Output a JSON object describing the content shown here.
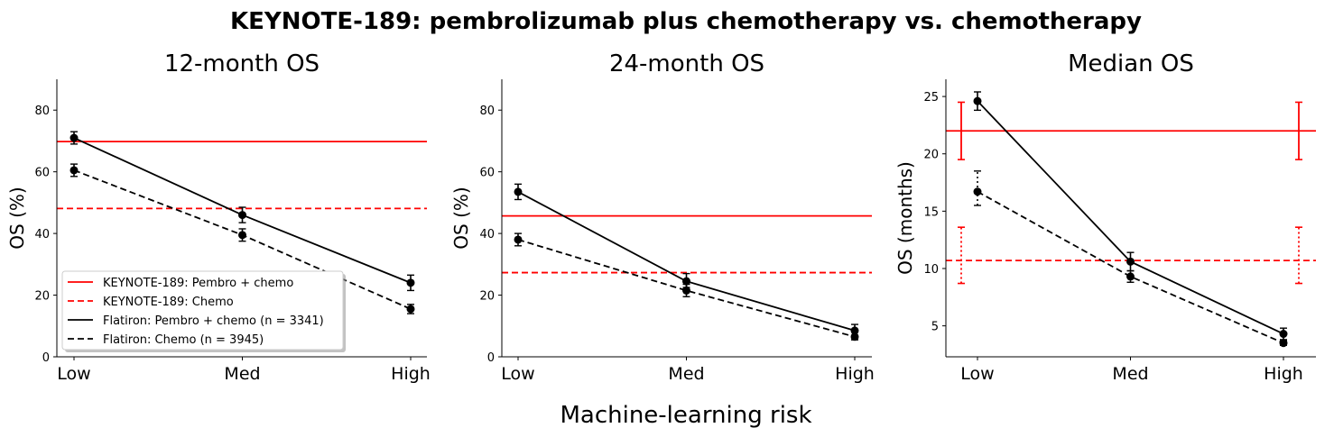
{
  "suptitle": "KEYNOTE-189: pembrolizumab plus chemotherapy vs. chemotherapy",
  "supxlabel": "Machine-learning risk",
  "colors": {
    "trial": "#ff0000",
    "flatiron": "#000000",
    "legend_shadow": "#999999"
  },
  "legend": {
    "placement": "lower-left of first panel",
    "entries": [
      {
        "label": "KEYNOTE-189: Pembro + chemo",
        "color": "#ff0000",
        "style": "solid"
      },
      {
        "label": "KEYNOTE-189: Chemo",
        "color": "#ff0000",
        "style": "dashed"
      },
      {
        "label": "Flatiron: Pembro + chemo (n = 3341)",
        "color": "#000000",
        "style": "solid"
      },
      {
        "label": "Flatiron: Chemo (n = 3945)",
        "color": "#000000",
        "style": "dashed"
      }
    ]
  },
  "chart_data": [
    {
      "type": "line",
      "title": "12-month OS",
      "xlabel": "",
      "ylabel": "OS (%)",
      "categories": [
        "Low",
        "Med",
        "High"
      ],
      "ylim": [
        0,
        90
      ],
      "yticks": [
        0,
        20,
        40,
        60,
        80
      ],
      "grid": false,
      "series": [
        {
          "name": "Flatiron: Pembro + chemo (n = 3341)",
          "style": "solid",
          "values": [
            71,
            46,
            24
          ],
          "err_low": [
            69,
            43.5,
            21.5
          ],
          "err_high": [
            73,
            48.5,
            26.5
          ]
        },
        {
          "name": "Flatiron: Chemo (n = 3945)",
          "style": "dashed",
          "values": [
            60.5,
            39.5,
            15.5
          ],
          "err_low": [
            58.5,
            37.5,
            14
          ],
          "err_high": [
            62.5,
            41.5,
            17
          ]
        }
      ],
      "reference_lines": [
        {
          "name": "KEYNOTE-189: Pembro + chemo",
          "style": "solid",
          "value": 69.8
        },
        {
          "name": "KEYNOTE-189: Chemo",
          "style": "dashed",
          "value": 48.1
        }
      ]
    },
    {
      "type": "line",
      "title": "24-month OS",
      "xlabel": "",
      "ylabel": "OS (%)",
      "categories": [
        "Low",
        "Med",
        "High"
      ],
      "ylim": [
        0,
        90
      ],
      "yticks": [
        0,
        20,
        40,
        60,
        80
      ],
      "grid": false,
      "series": [
        {
          "name": "Flatiron: Pembro + chemo (n = 3341)",
          "style": "solid",
          "values": [
            53.5,
            24.5,
            8.5
          ],
          "err_low": [
            51,
            22.5,
            7
          ],
          "err_high": [
            56,
            27,
            10.5
          ]
        },
        {
          "name": "Flatiron: Chemo (n = 3945)",
          "style": "dashed",
          "values": [
            38,
            21.5,
            6.5
          ],
          "err_low": [
            36,
            19.5,
            5.5
          ],
          "err_high": [
            40,
            23.5,
            8
          ]
        }
      ],
      "reference_lines": [
        {
          "name": "KEYNOTE-189: Pembro + chemo",
          "style": "solid",
          "value": 45.7
        },
        {
          "name": "KEYNOTE-189: Chemo",
          "style": "dashed",
          "value": 27.3
        }
      ]
    },
    {
      "type": "line",
      "title": "Median OS",
      "xlabel": "",
      "ylabel": "OS (months)",
      "categories": [
        "Low",
        "Med",
        "High"
      ],
      "ylim": [
        2.3,
        26.5
      ],
      "yticks": [
        5,
        10,
        15,
        20,
        25
      ],
      "grid": false,
      "series": [
        {
          "name": "Flatiron: Pembro + chemo (n = 3341)",
          "style": "solid",
          "values": [
            24.6,
            10.6,
            4.3
          ],
          "err_low": [
            23.8,
            9.8,
            3.8
          ],
          "err_high": [
            25.4,
            11.4,
            4.8
          ],
          "err_style": "solid"
        },
        {
          "name": "Flatiron: Chemo (n = 3945)",
          "style": "dashed",
          "values": [
            16.7,
            9.3,
            3.5
          ],
          "err_low": [
            15.5,
            8.8,
            3.3
          ],
          "err_high": [
            18.5,
            9.8,
            3.7
          ],
          "err_style": "dotted"
        }
      ],
      "reference_lines": [
        {
          "name": "KEYNOTE-189: Pembro + chemo",
          "style": "solid",
          "value": 22.0,
          "ci": [
            19.5,
            24.5
          ]
        },
        {
          "name": "KEYNOTE-189: Chemo",
          "style": "dashed",
          "value": 10.7,
          "ci": [
            8.7,
            13.6
          ]
        }
      ]
    }
  ]
}
